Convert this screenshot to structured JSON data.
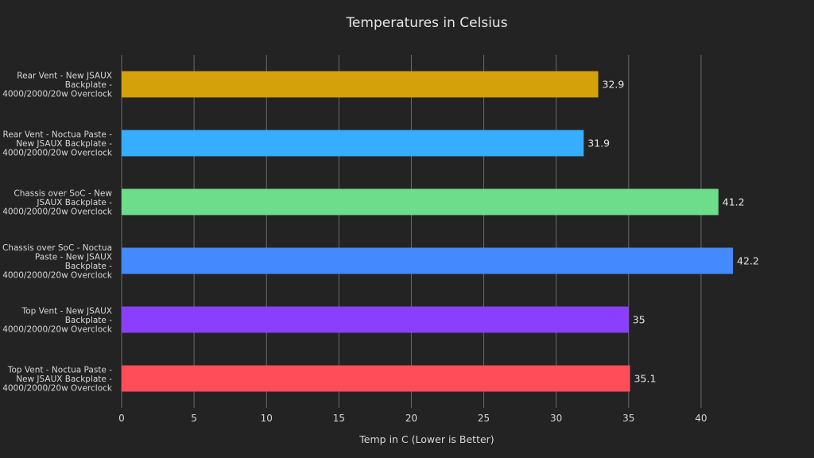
{
  "chart_data": {
    "type": "bar",
    "orientation": "horizontal",
    "title": "Temperatures in Celsius",
    "xlabel": "Temp in C (Lower is Better)",
    "ylabel": "",
    "xlim": [
      0,
      42.2
    ],
    "xticks": [
      0,
      5,
      10,
      15,
      20,
      25,
      30,
      35,
      40
    ],
    "grid": true,
    "legend": "none",
    "categories": [
      [
        "Rear Vent - New JSAUX",
        "Backplate -",
        "4000/2000/20w Overclock"
      ],
      [
        "Rear Vent - Noctua Paste -",
        "New JSAUX Backplate -",
        "4000/2000/20w Overclock"
      ],
      [
        "Chassis over SoC - New",
        "JSAUX Backplate -",
        "4000/2000/20w Overclock"
      ],
      [
        "Chassis over SoC - Noctua",
        "Paste - New JSAUX",
        "Backplate -",
        "4000/2000/20w Overclock"
      ],
      [
        "Top Vent - New JSAUX",
        "Backplate -",
        "4000/2000/20w Overclock"
      ],
      [
        "Top Vent - Noctua Paste -",
        "New JSAUX Backplate -",
        "4000/2000/20w Overclock"
      ]
    ],
    "values": [
      32.9,
      31.9,
      41.2,
      42.2,
      35,
      35.1
    ],
    "value_labels": [
      "32.9",
      "31.9",
      "41.2",
      "42.2",
      "35",
      "35.1"
    ],
    "colors": [
      "#d4a10a",
      "#35aeff",
      "#6ddc8b",
      "#4589ff",
      "#8a3ffc",
      "#ff4d5a"
    ]
  }
}
